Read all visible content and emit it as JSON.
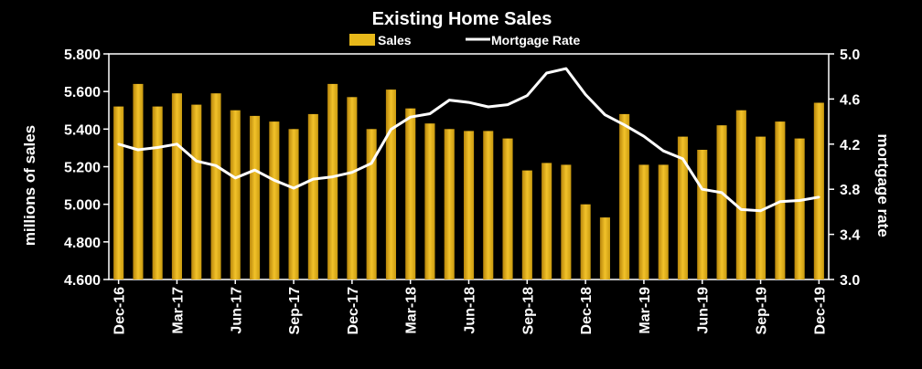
{
  "chart_data": {
    "type": "bar",
    "title": "Existing Home Sales",
    "ylabel": "millions of sales",
    "y2label": "mortgage rate",
    "legend": {
      "position": "top-center",
      "entries": [
        "Sales",
        "Mortgage Rate"
      ]
    },
    "ylim": [
      4.6,
      5.8
    ],
    "y2lim": [
      3.0,
      5.0
    ],
    "yticks": [
      "4.600",
      "4.800",
      "5.000",
      "5.200",
      "5.400",
      "5.600",
      "5.800"
    ],
    "y2ticks": [
      "3.0",
      "3.4",
      "3.8",
      "4.2",
      "4.6",
      "5.0"
    ],
    "xtick_labels": [
      "Dec-16",
      "Mar-17",
      "Jun-17",
      "Sep-17",
      "Dec-17",
      "Mar-18",
      "Jun-18",
      "Sep-18",
      "Dec-18",
      "Mar-19",
      "Jun-19",
      "Sep-19",
      "Dec-19"
    ],
    "categories": [
      "Dec-16",
      "Jan-17",
      "Feb-17",
      "Mar-17",
      "Apr-17",
      "May-17",
      "Jun-17",
      "Jul-17",
      "Aug-17",
      "Sep-17",
      "Oct-17",
      "Nov-17",
      "Dec-17",
      "Jan-18",
      "Feb-18",
      "Mar-18",
      "Apr-18",
      "May-18",
      "Jun-18",
      "Jul-18",
      "Aug-18",
      "Sep-18",
      "Oct-18",
      "Nov-18",
      "Dec-18",
      "Jan-19",
      "Feb-19",
      "Mar-19",
      "Apr-19",
      "May-19",
      "Jun-19",
      "Jul-19",
      "Aug-19",
      "Sep-19",
      "Oct-19",
      "Nov-19",
      "Dec-19"
    ],
    "series": [
      {
        "name": "Sales",
        "type": "bar",
        "axis": "left",
        "color": "#e8b91a",
        "values": [
          5.52,
          5.64,
          5.52,
          5.59,
          5.53,
          5.59,
          5.5,
          5.47,
          5.44,
          5.4,
          5.48,
          5.64,
          5.57,
          5.4,
          5.61,
          5.51,
          5.43,
          5.4,
          5.39,
          5.39,
          5.35,
          5.18,
          5.22,
          5.21,
          5.0,
          4.93,
          5.48,
          5.21,
          5.21,
          5.36,
          5.29,
          5.42,
          5.5,
          5.36,
          5.44,
          5.35,
          5.54
        ]
      },
      {
        "name": "Mortgage Rate",
        "type": "line",
        "axis": "right",
        "color": "#ffffff",
        "values": [
          4.2,
          4.15,
          4.17,
          4.2,
          4.05,
          4.01,
          3.9,
          3.97,
          3.88,
          3.81,
          3.89,
          3.91,
          3.95,
          4.03,
          4.33,
          4.44,
          4.47,
          4.59,
          4.57,
          4.53,
          4.55,
          4.63,
          4.83,
          4.87,
          4.64,
          4.46,
          4.37,
          4.27,
          4.14,
          4.07,
          3.8,
          3.77,
          3.62,
          3.61,
          3.69,
          3.7,
          3.73
        ]
      }
    ]
  }
}
